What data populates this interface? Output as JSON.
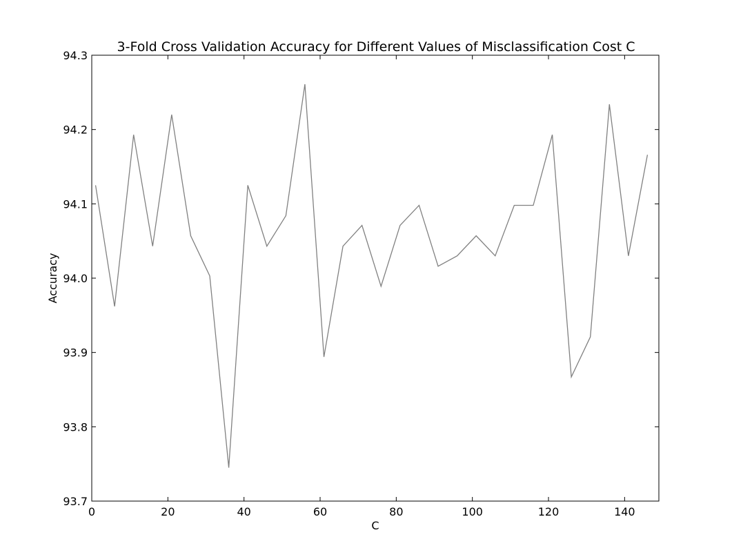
{
  "chart_data": {
    "type": "line",
    "title": "3-Fold Cross Validation Accuracy for Different Values of Misclassification Cost C",
    "xlabel": "C",
    "ylabel": "Accuracy",
    "xlim": [
      0,
      149
    ],
    "ylim": [
      93.7,
      94.3
    ],
    "xticks": [
      "0",
      "20",
      "40",
      "60",
      "80",
      "100",
      "120",
      "140"
    ],
    "xtick_values": [
      0,
      20,
      40,
      60,
      80,
      100,
      120,
      140
    ],
    "yticks": [
      "93.7",
      "93.8",
      "93.9",
      "94.0",
      "94.1",
      "94.2",
      "94.3"
    ],
    "ytick_values": [
      93.7,
      93.8,
      93.9,
      94.0,
      94.1,
      94.2,
      94.3
    ],
    "grid": false,
    "line_color": "#808080",
    "x": [
      1,
      6,
      11,
      16,
      21,
      26,
      31,
      36,
      41,
      46,
      51,
      56,
      61,
      66,
      71,
      76,
      81,
      86,
      91,
      96,
      101,
      106,
      111,
      116,
      121,
      126,
      131,
      136,
      141,
      146
    ],
    "y": [
      94.125,
      93.962,
      94.193,
      94.043,
      94.22,
      94.057,
      94.003,
      93.745,
      94.125,
      94.043,
      94.084,
      94.261,
      93.894,
      94.043,
      94.071,
      93.989,
      94.071,
      94.098,
      94.016,
      94.03,
      94.057,
      94.03,
      94.098,
      94.098,
      94.193,
      93.867,
      93.921,
      94.234,
      94.03,
      94.166
    ]
  }
}
